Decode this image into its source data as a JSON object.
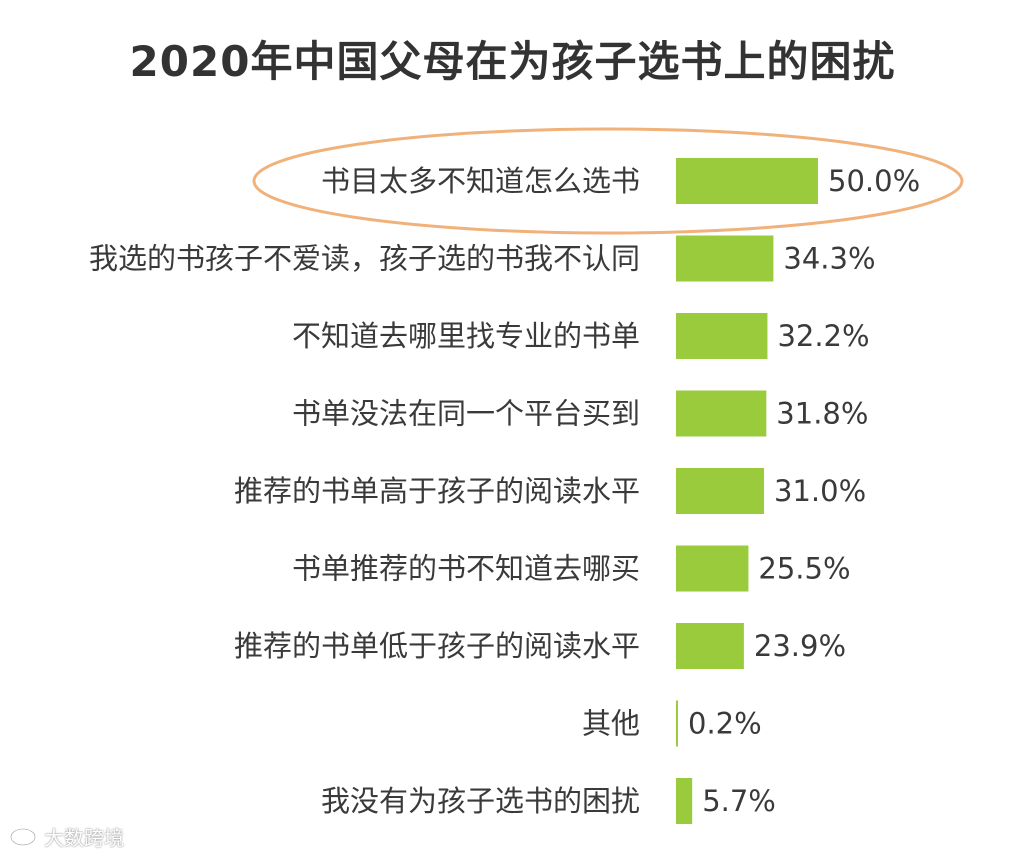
{
  "chart_data": {
    "type": "bar",
    "orientation": "horizontal",
    "title": "2020年中国父母在为孩子选书上的困扰",
    "categories": [
      "书目太多不知道怎么选书",
      "我选的书孩子不爱读，孩子选的书我不认同",
      "不知道去哪里找专业的书单",
      "书单没法在同一个平台买到",
      "推荐的书单高于孩子的阅读水平",
      "书单推荐的书不知道去哪买",
      "推荐的书单低于孩子的阅读水平",
      "其他",
      "我没有为孩子选书的困扰"
    ],
    "values": [
      50.0,
      34.3,
      32.2,
      31.8,
      31.0,
      25.5,
      23.9,
      0.2,
      5.7
    ],
    "value_labels": [
      "50.0%",
      "34.3%",
      "32.2%",
      "31.8%",
      "31.0%",
      "25.5%",
      "23.9%",
      "0.2%",
      "5.7%"
    ],
    "unit": "%",
    "highlighted_category_index": 0,
    "grid": false,
    "legend": "none",
    "colors": {
      "bar": "#9acb3c",
      "highlight_ellipse": "#f0b27a",
      "text": "#3a3a3a",
      "title": "#333333"
    }
  },
  "watermark": {
    "text": "大数跨境",
    "icon": "eye-logo-icon"
  }
}
